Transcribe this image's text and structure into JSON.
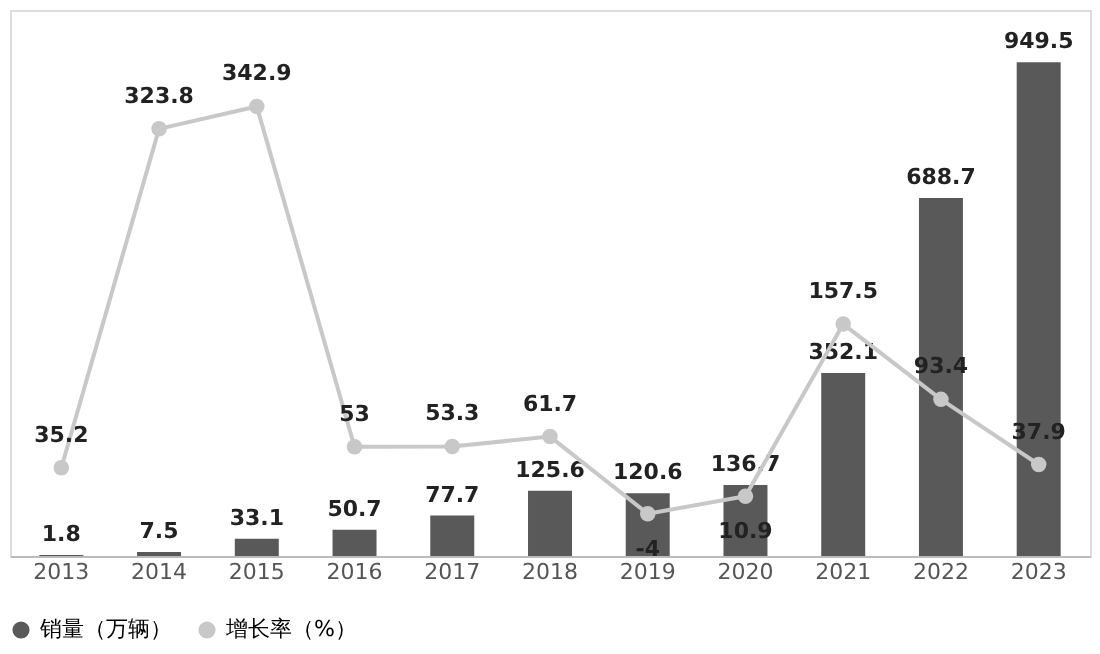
{
  "chart_data": {
    "type": "bar",
    "categories": [
      "2013",
      "2014",
      "2015",
      "2016",
      "2017",
      "2018",
      "2019",
      "2020",
      "2021",
      "2022",
      "2023"
    ],
    "series": [
      {
        "name": "销量（万辆）",
        "color": "#595959",
        "values": [
          1.8,
          7.5,
          33.1,
          50.7,
          77.7,
          125.6,
          120.6,
          136.7,
          352.1,
          688.7,
          949.5
        ]
      },
      {
        "name": "增长率（%）",
        "type": "line",
        "axis": "y2",
        "color": "#c8c8c8",
        "marker": "circle",
        "values": [
          35.2,
          323.8,
          342.9,
          53,
          53.3,
          61.7,
          -4,
          10.9,
          157.5,
          93.4,
          37.9
        ]
      }
    ],
    "ylim": [
      0,
      1050
    ],
    "y2lim": [
      -40,
      425
    ],
    "data_labels": true,
    "tick_labels": "x",
    "grid": false,
    "legend": "bottom"
  }
}
